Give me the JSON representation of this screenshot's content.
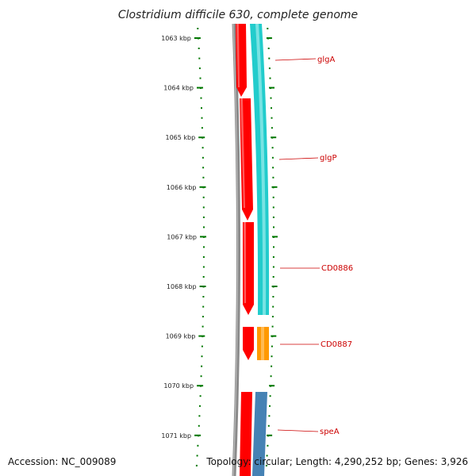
{
  "title": "Clostridium difficile 630, complete genome",
  "footer": {
    "accession": "Accession: NC_009089",
    "topology": "Topology: circular; Length: 4,290,252 bp; Genes: 3,926"
  },
  "scale": {
    "tick_labels": [
      "1063 kbp",
      "1064 kbp",
      "1065 kbp",
      "1066 kbp",
      "1067 kbp",
      "1068 kbp",
      "1069 kbp",
      "1070 kbp",
      "1071 kbp"
    ]
  },
  "genes": [
    {
      "label": "glgA"
    },
    {
      "label": "glgP"
    },
    {
      "label": "CD0886"
    },
    {
      "label": "CD0887"
    },
    {
      "label": "speA"
    }
  ],
  "colors": {
    "backbone": "#7a7a7a",
    "cds_forward": "#ff0000",
    "gene_teal": "#22cccc",
    "gene_orange": "#ff9900",
    "gene_steelblue": "#4682b4",
    "label_red": "#cc0000",
    "tick_green": "#007700"
  }
}
